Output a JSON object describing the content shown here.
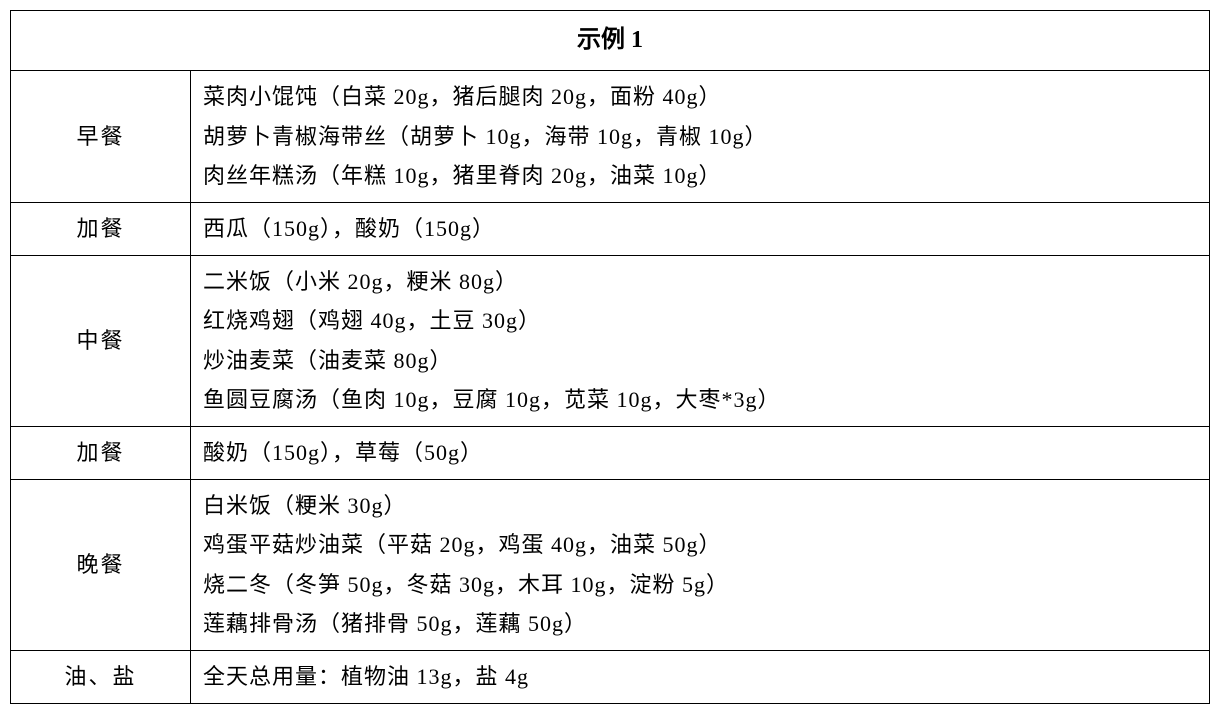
{
  "title": "示例 1",
  "rows": [
    {
      "label": "早餐",
      "lines": [
        "菜肉小馄饨（白菜 20g，猪后腿肉 20g，面粉 40g）",
        "胡萝卜青椒海带丝（胡萝卜 10g，海带 10g，青椒 10g）",
        "肉丝年糕汤（年糕 10g，猪里脊肉 20g，油菜 10g）"
      ]
    },
    {
      "label": "加餐",
      "lines": [
        "西瓜（150g），酸奶（150g）"
      ]
    },
    {
      "label": "中餐",
      "lines": [
        "二米饭（小米 20g，粳米 80g）",
        "红烧鸡翅（鸡翅 40g，土豆 30g）",
        "炒油麦菜（油麦菜 80g）",
        "鱼圆豆腐汤（鱼肉 10g，豆腐 10g，苋菜 10g，大枣*3g）"
      ]
    },
    {
      "label": "加餐",
      "lines": [
        "酸奶（150g），草莓（50g）"
      ]
    },
    {
      "label": "晚餐",
      "lines": [
        "白米饭（粳米 30g）",
        "鸡蛋平菇炒油菜（平菇 20g，鸡蛋 40g，油菜 50g）",
        "烧二冬（冬笋 50g，冬菇 30g，木耳 10g，淀粉 5g）",
        "莲藕排骨汤（猪排骨 50g，莲藕 50g）"
      ]
    },
    {
      "label": "油、盐",
      "lines": [
        "全天总用量：植物油 13g，盐 4g"
      ]
    }
  ]
}
